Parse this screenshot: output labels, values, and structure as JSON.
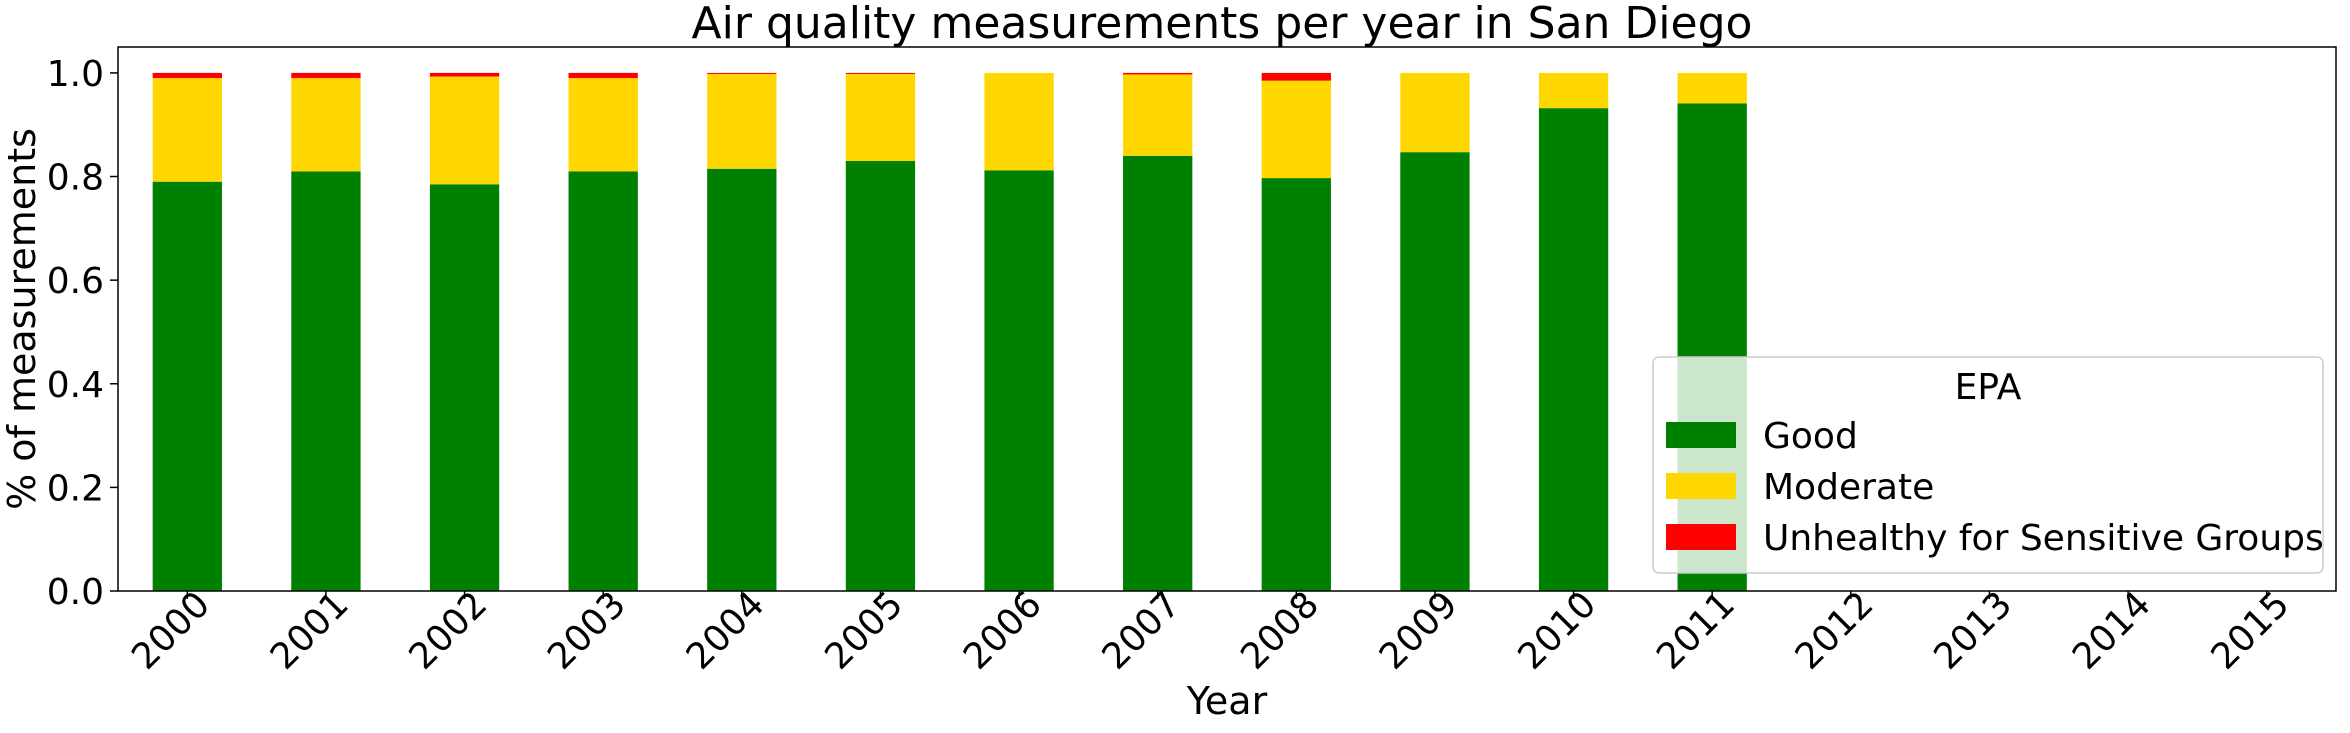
{
  "chart_data": {
    "type": "bar",
    "stacked": true,
    "title": "Air quality measurements per year in San Diego",
    "xlabel": "Year",
    "ylabel": "% of measurements",
    "categories": [
      "2000",
      "2001",
      "2002",
      "2003",
      "2004",
      "2005",
      "2006",
      "2007",
      "2008",
      "2009",
      "2010",
      "2011",
      "2012",
      "2013",
      "2014",
      "2015"
    ],
    "ylim": [
      0,
      1.05
    ],
    "yticks": [
      "0.0",
      "0.2",
      "0.4",
      "0.6",
      "0.8",
      "1.0"
    ],
    "grid": false,
    "legend": {
      "title": "EPA",
      "placement": "lower-right"
    },
    "series": [
      {
        "name": "Good",
        "color": "#008000",
        "values": [
          0.79,
          0.81,
          0.785,
          0.81,
          0.815,
          0.83,
          0.812,
          0.84,
          0.797,
          0.847,
          0.932,
          0.941,
          0,
          0,
          0,
          0
        ]
      },
      {
        "name": "Moderate",
        "color": "#FFD700",
        "values": [
          0.2,
          0.18,
          0.208,
          0.18,
          0.183,
          0.168,
          0.188,
          0.157,
          0.188,
          0.153,
          0.068,
          0.059,
          0,
          0,
          0,
          0
        ]
      },
      {
        "name": "Unhealthy for Sensitive Groups",
        "color": "#FF0000",
        "values": [
          0.01,
          0.01,
          0.007,
          0.01,
          0.002,
          0.002,
          0,
          0.003,
          0.015,
          0,
          0,
          0,
          0,
          0,
          0,
          0
        ]
      }
    ]
  }
}
